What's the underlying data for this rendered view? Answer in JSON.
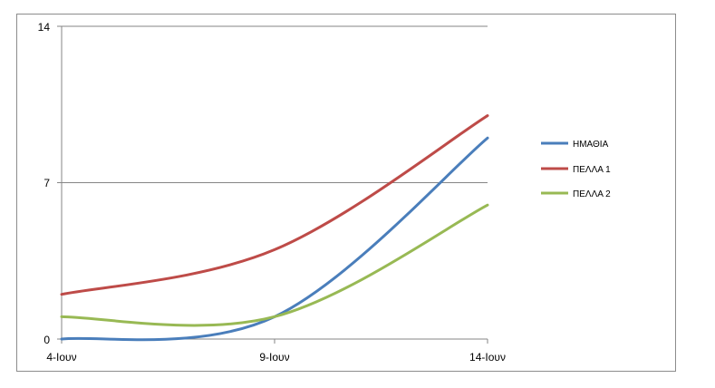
{
  "chart_data": {
    "type": "line",
    "categories": [
      "4-Ιουν",
      "9-Ιουν",
      "14-Ιουν"
    ],
    "ylim": [
      0,
      14
    ],
    "yticks": [
      "0",
      "7",
      "14"
    ],
    "grid": true,
    "smooth": true,
    "legend_position": "right",
    "series": [
      {
        "name": "ΗΜΑΘΙΑ",
        "color": "#4a7ebb",
        "values": [
          0,
          1,
          9
        ]
      },
      {
        "name": "ΠΕΛΛΑ 1",
        "color": "#be4b48",
        "values": [
          2,
          4,
          10
        ]
      },
      {
        "name": "ΠΕΛΛΑ 2",
        "color": "#98b954",
        "values": [
          1,
          1,
          6
        ]
      }
    ]
  }
}
